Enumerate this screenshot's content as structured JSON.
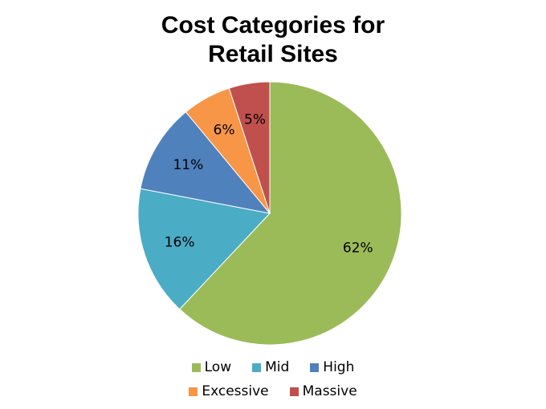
{
  "chart_data": {
    "type": "pie",
    "title_lines": [
      "Cost Categories for",
      "Retail Sites"
    ],
    "categories": [
      "Low",
      "Mid",
      "High",
      "Excessive",
      "Massive"
    ],
    "values": [
      62,
      16,
      11,
      6,
      5
    ],
    "labels": [
      "62%",
      "16%",
      "11%",
      "6%",
      "5%"
    ],
    "colors": [
      "#9BBB59",
      "#4BACC6",
      "#4F81BD",
      "#F79646",
      "#C0504D"
    ],
    "legend_position": "bottom"
  }
}
